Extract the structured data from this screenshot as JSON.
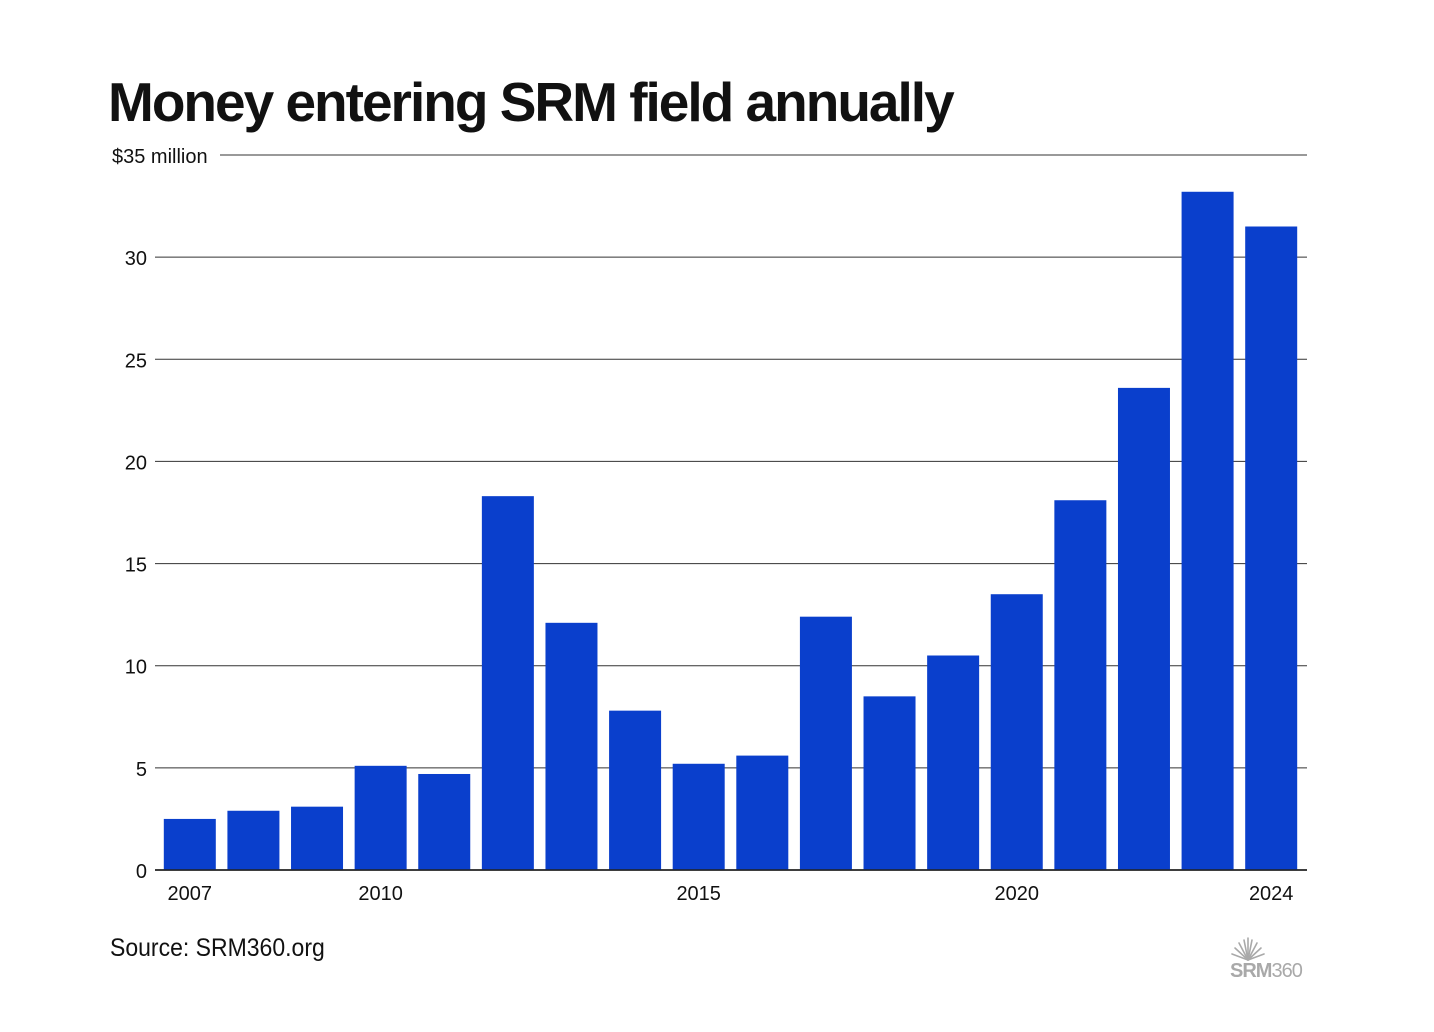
{
  "chart_data": {
    "type": "bar",
    "title": "Money entering SRM field annually",
    "ylabel": "$35 million",
    "ylim": [
      0,
      35
    ],
    "yticks": [
      0,
      5,
      10,
      15,
      20,
      25,
      30,
      35
    ],
    "ytick_labels": [
      "0",
      "5",
      "10",
      "15",
      "20",
      "25",
      "30",
      "$35 million"
    ],
    "x_tick_labels": {
      "2007": "2007",
      "2010": "2010",
      "2015": "2015",
      "2020": "2020",
      "2024": "2024"
    },
    "categories": [
      2007,
      2008,
      2009,
      2010,
      2011,
      2012,
      2013,
      2014,
      2015,
      2016,
      2017,
      2018,
      2019,
      2020,
      2021,
      2022,
      2023,
      2024
    ],
    "values": [
      2.5,
      2.9,
      3.1,
      5.1,
      4.7,
      18.3,
      12.1,
      7.8,
      5.2,
      5.6,
      12.4,
      8.5,
      10.5,
      13.5,
      18.1,
      23.6,
      33.2,
      31.5
    ],
    "color": "#0a3fcc",
    "grid": true
  },
  "source": "Source: SRM360.org",
  "logo": {
    "bold": "SRM",
    "light": "360"
  },
  "colors": {
    "bar": "#0a3fcc",
    "text": "#111111",
    "grid": "#333333",
    "logo": "#a9a9a9"
  }
}
